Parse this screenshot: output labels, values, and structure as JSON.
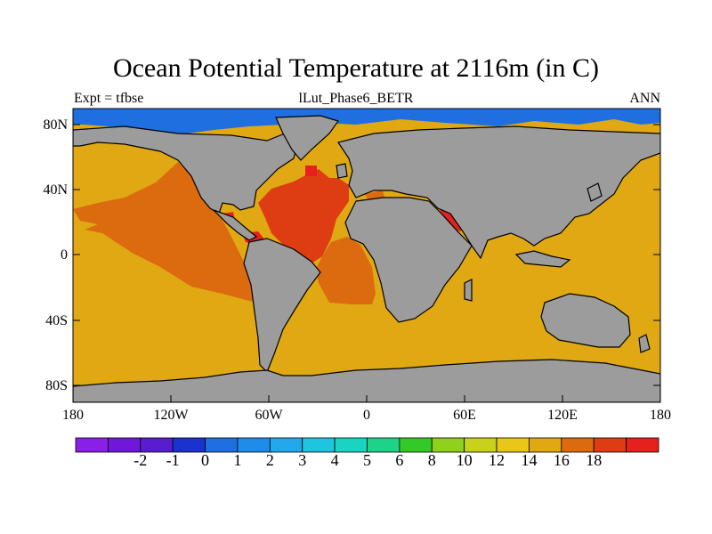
{
  "map": {
    "title": "Ocean Potential Temperature at 2116m (in C)",
    "subtitle_left": "Expt = tfbse",
    "subtitle_center": "lLut_Phase6_BETR",
    "subtitle_right": "ANN",
    "lat_labels": [
      "80N",
      "40N",
      "0",
      "40S",
      "80S"
    ],
    "lon_labels": [
      "180",
      "120W",
      "60W",
      "0",
      "60E",
      "120E",
      "180"
    ],
    "region": "Global ocean, 180W to 180E, 90S to 90N",
    "land_color": "#9c9c9c",
    "coastline_color": "#000000"
  },
  "colorbar": {
    "labels": [
      "-2",
      "-1",
      "0",
      "1",
      "2",
      "3",
      "4",
      "5",
      "6",
      "8",
      "10",
      "12",
      "14",
      "16",
      "18"
    ],
    "colors": [
      "#8a1fe6",
      "#7017d9",
      "#5a1ccf",
      "#1a33cf",
      "#1f6fe0",
      "#1f8ce8",
      "#24a8ec",
      "#1ec4e0",
      "#19d4c0",
      "#1fd28a",
      "#35c928",
      "#8fd11c",
      "#c9d11a",
      "#e8c718",
      "#e0a812",
      "#dc6b10",
      "#de3c12",
      "#e6201c"
    ]
  },
  "field_colors": {
    "deep_polar": "#1f6fe0",
    "main_ocean": "#e0a812",
    "warm": "#dc6b10",
    "warmer": "#de3c12",
    "hottest": "#e6201c"
  }
}
